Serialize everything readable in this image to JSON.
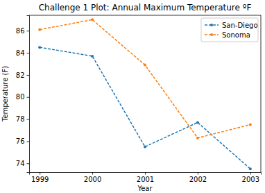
{
  "chart_data": {
    "type": "line",
    "title": "Challenge 1 Plot: Annual Maximum Temperature ºF",
    "x_label": "Year",
    "y_label": "Temperature (F)",
    "x": [
      1999,
      2000,
      2001,
      2002,
      2003
    ],
    "series": [
      {
        "name": "San-Diego",
        "color": "#1f77b4",
        "values": [
          84.5,
          83.7,
          75.5,
          77.7,
          73.5
        ]
      },
      {
        "name": "Sonoma",
        "color": "#ff7f0e",
        "values": [
          86.1,
          87.0,
          82.9,
          76.3,
          77.5
        ]
      }
    ],
    "xlim": [
      1998.8,
      2003.2
    ],
    "xticks": [
      1999,
      2000,
      2001,
      2002,
      2003
    ],
    "ylim": [
      73.2,
      87.4
    ],
    "yticks": [
      74,
      76,
      78,
      80,
      82,
      84,
      86
    ],
    "grid": false,
    "legend": "upper right",
    "marker": "point",
    "line_style": "dashed"
  }
}
